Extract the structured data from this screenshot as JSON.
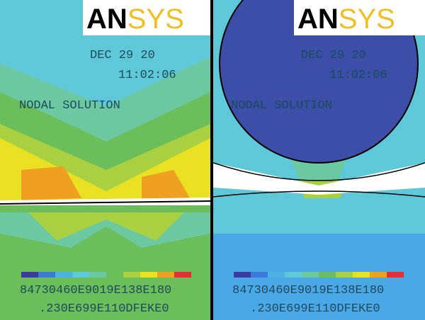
{
  "panels": [
    {
      "logo": {
        "a": "AN",
        "b": "SYS"
      },
      "date": "DEC 29 20",
      "time": "11:02:06",
      "label": "NODAL SOLUTION",
      "legend": {
        "line1": "84730460E9019E138E180",
        "line2": ".230E699E110DFEKE0"
      }
    },
    {
      "logo": {
        "a": "AN",
        "b": "SYS"
      },
      "date": "DEC 29 20",
      "time": "11:02:06",
      "label": "NODAL SOLUTION",
      "legend": {
        "line1": "84730460E9019E138E180",
        "line2": ".230E699E110DFEKE0"
      }
    }
  ]
}
